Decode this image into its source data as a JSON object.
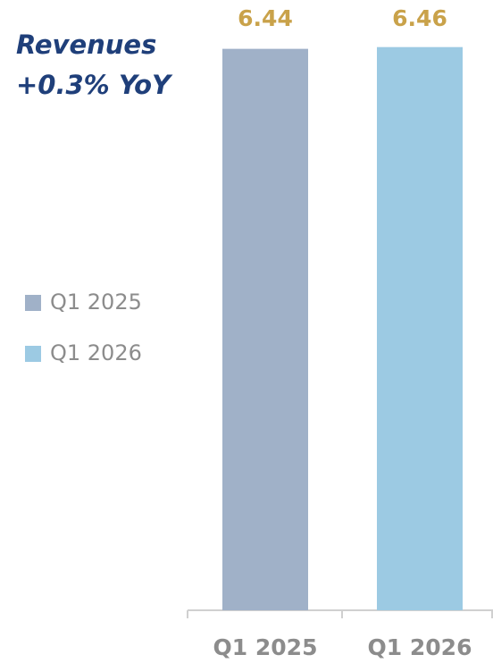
{
  "chart_data": {
    "type": "bar",
    "title": "Revenues",
    "subtitle": "+0.3% YoY",
    "categories": [
      "Q1 2025",
      "Q1 2026"
    ],
    "values": [
      6.44,
      6.46
    ],
    "colors": [
      "#a0b1c8",
      "#9ccae3"
    ],
    "ylim": [
      0,
      7
    ],
    "legend": "left"
  }
}
